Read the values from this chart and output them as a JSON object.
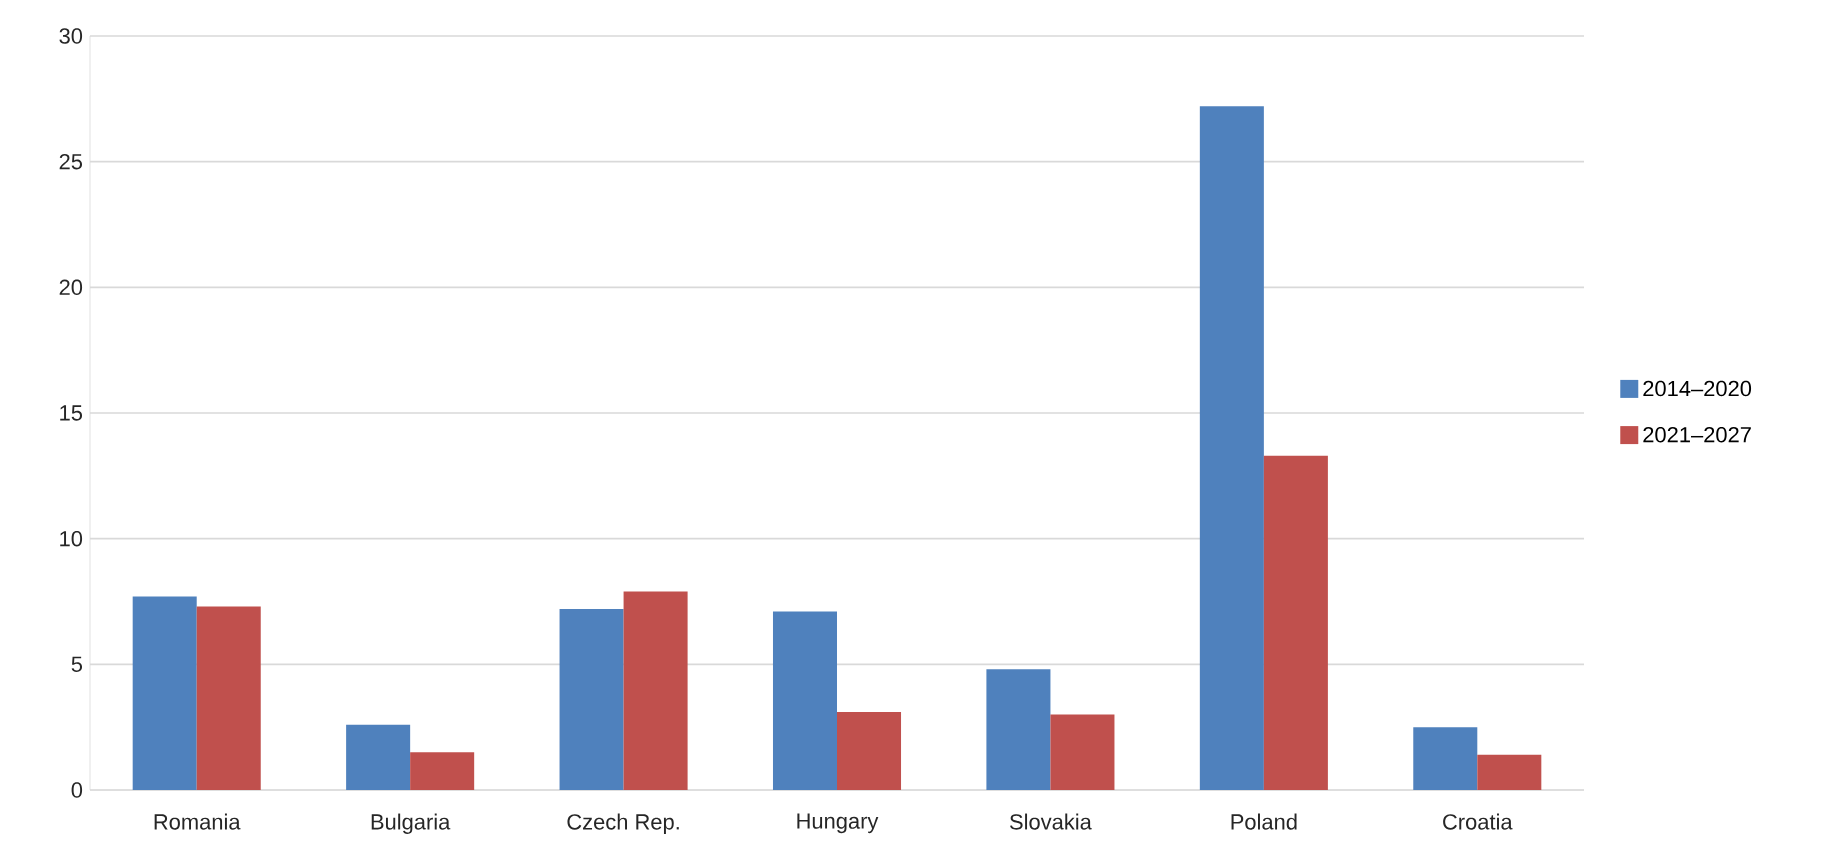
{
  "chart_data": {
    "type": "bar",
    "categories": [
      "Romania",
      "Bulgaria",
      "Czech Rep.",
      "Hungary",
      "Slovakia",
      "Poland",
      "Croatia"
    ],
    "series": [
      {
        "name": "2014–2020",
        "color": "#4f81bd",
        "values": [
          7.7,
          2.6,
          7.2,
          7.1,
          4.8,
          27.2,
          2.5
        ]
      },
      {
        "name": "2021–2027",
        "color": "#c0504d",
        "values": [
          7.3,
          1.5,
          7.9,
          3.1,
          3.0,
          13.3,
          1.4
        ]
      }
    ],
    "ylim": [
      0,
      30
    ],
    "yticks": [
      0,
      5,
      10,
      15,
      20,
      25,
      30
    ],
    "grid": "y",
    "legend": "right"
  }
}
